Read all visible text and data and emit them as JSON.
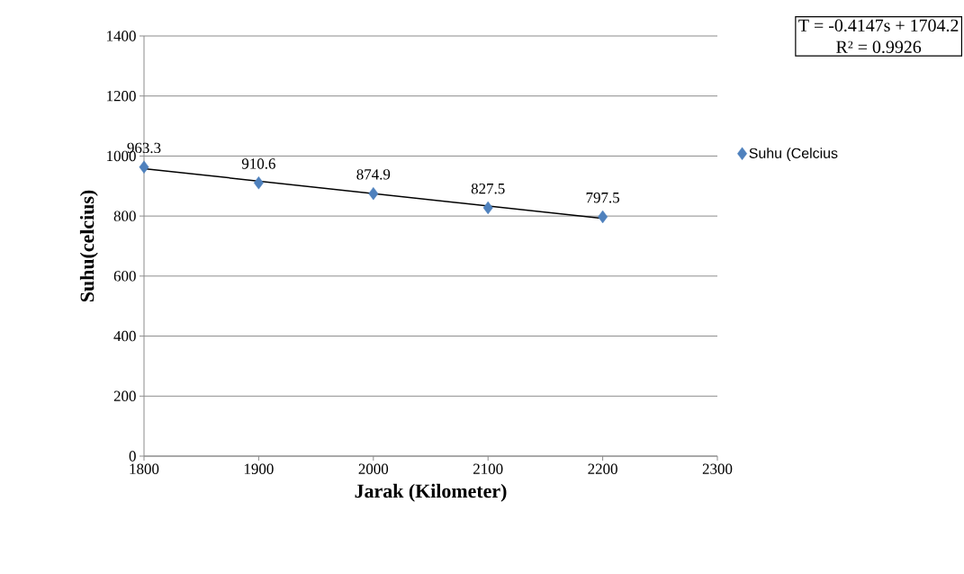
{
  "chart_data": {
    "type": "scatter",
    "xlabel": "Jarak (Kilometer)",
    "ylabel": "Suhu(celcius)",
    "annotations": [
      "T = -0.4147s + 1704.2",
      "R² = 0.9926"
    ],
    "series": [
      {
        "name": "Suhu (Celcius",
        "color": "#4f81bd",
        "marker": "diamond",
        "x": [
          1800,
          1900,
          2000,
          2100,
          2200
        ],
        "values": [
          963.3,
          910.6,
          874.9,
          827.5,
          797.5
        ],
        "value_labels": [
          "963.3",
          "910.6",
          "874.9",
          "827.5",
          "797.5"
        ]
      },
      {
        "type": "line",
        "color": "#000000",
        "marker": "none",
        "x": [
          1800,
          2200
        ],
        "values": [
          958,
          792
        ]
      }
    ],
    "xlim": [
      1800,
      2300
    ],
    "xticks": [
      1800,
      1900,
      2000,
      2100,
      2200,
      2300
    ],
    "ylim": [
      0,
      1400
    ],
    "yticks": [
      0,
      200,
      400,
      600,
      800,
      1000,
      1200,
      1400
    ],
    "grid": "y",
    "legend": "right"
  }
}
